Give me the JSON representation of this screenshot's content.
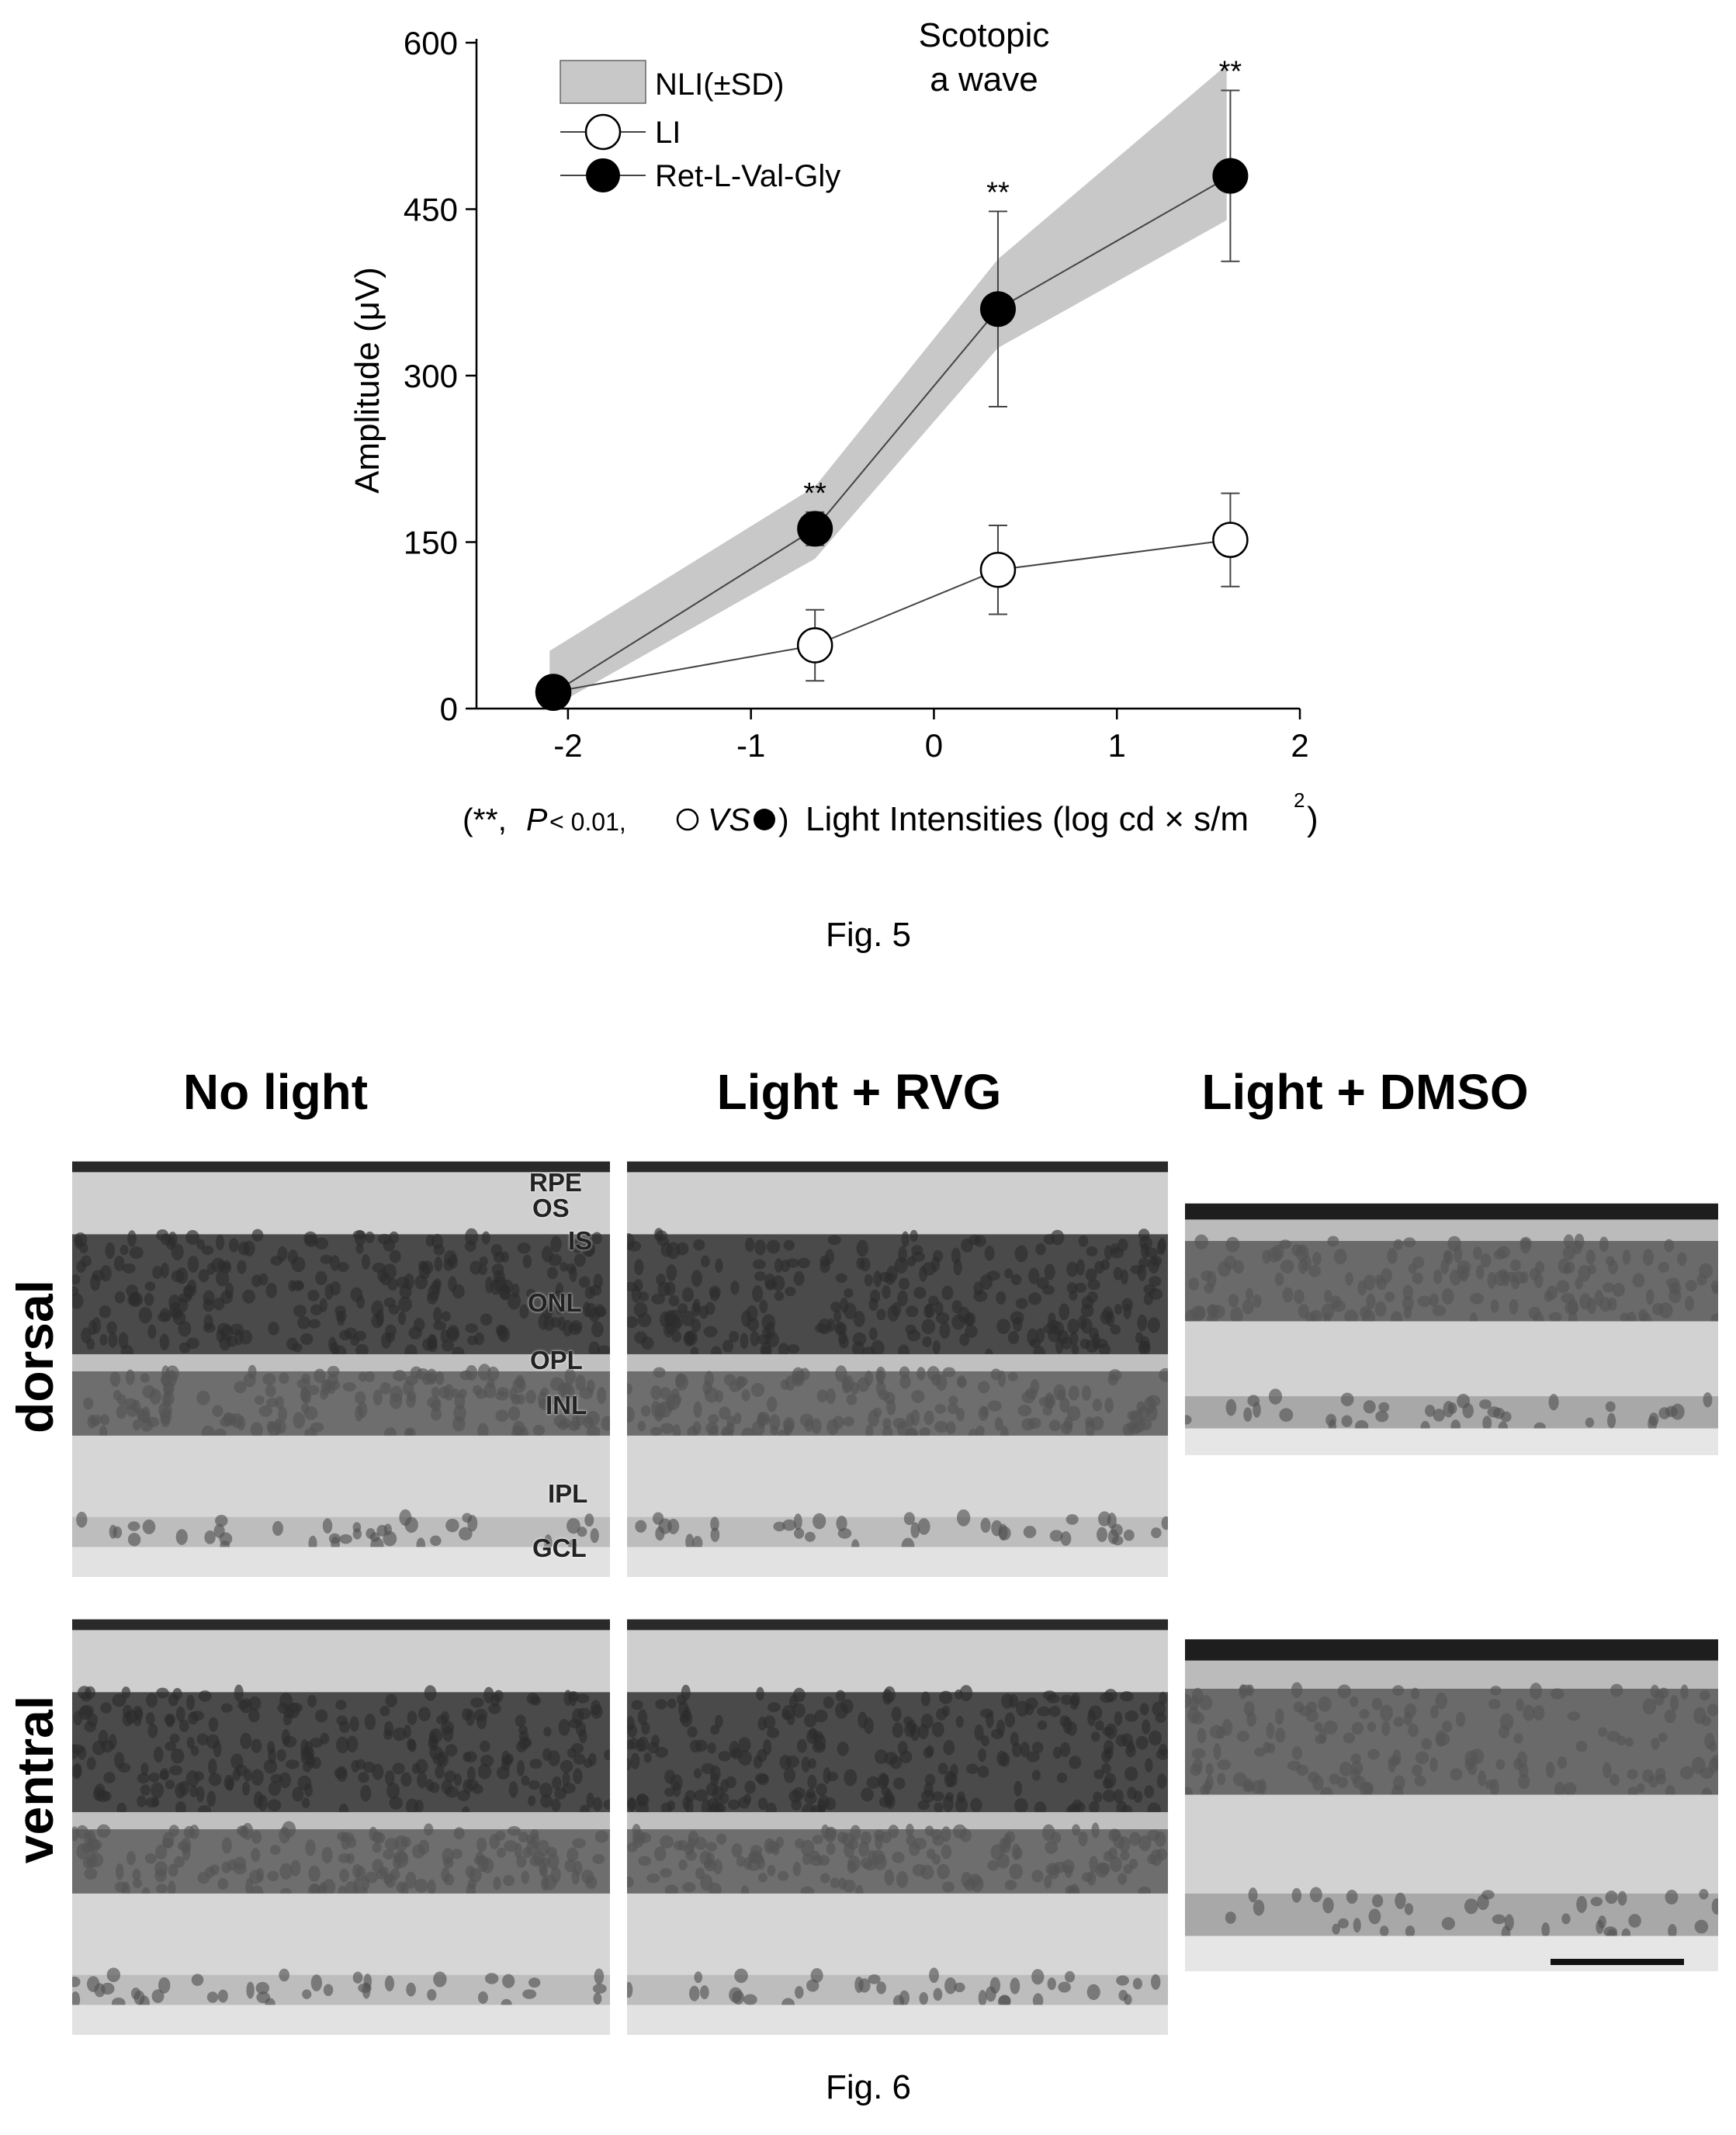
{
  "fig5": {
    "caption": "Fig. 5",
    "annotation": [
      "Scotopic",
      "a wave"
    ],
    "footnote": {
      "open": "(**, ",
      "p_italic": "P",
      "p_rest": "< 0.01, ",
      "vs_italic": "VS",
      "close": ")",
      "axis_label": "Light Intensities (log cd × s/m",
      "axis_sup": "2",
      "axis_end": ")"
    },
    "chart_data": {
      "type": "line",
      "ylabel": "Amplitude (μV)",
      "xlabel": "Light Intensities (log cd × s/m2)",
      "xlim": [
        -2.5,
        2
      ],
      "ylim": [
        0,
        600
      ],
      "x_ticks": [
        -2,
        -1,
        0,
        1,
        2
      ],
      "x_tick_labels": [
        "-2",
        "-1",
        "0",
        "1",
        "2"
      ],
      "y_ticks": [
        0,
        150,
        300,
        450,
        600
      ],
      "y_tick_labels": [
        "0",
        "150",
        "300",
        "450",
        "600"
      ],
      "legend_position": "top-left",
      "significance_marker": "**",
      "band": {
        "name": "NLI(±SD)",
        "x": [
          -2.1,
          -0.65,
          0.35,
          1.6
        ],
        "upper": [
          52,
          200,
          405,
          580
        ],
        "lower": [
          0,
          135,
          325,
          440
        ]
      },
      "series": [
        {
          "name": "LI",
          "marker": "open-circle",
          "x": [
            -2.08,
            -0.65,
            0.35,
            1.62
          ],
          "y": [
            15,
            57,
            125,
            152
          ],
          "error": [
            5,
            32,
            40,
            42
          ]
        },
        {
          "name": "Ret-L-Val-Gly",
          "marker": "filled-circle",
          "x": [
            -2.08,
            -0.65,
            0.35,
            1.62
          ],
          "y": [
            14,
            162,
            360,
            480
          ],
          "error": [
            5,
            15,
            88,
            77
          ],
          "significant": [
            false,
            true,
            true,
            true
          ]
        }
      ]
    }
  },
  "fig6": {
    "caption": "Fig. 6",
    "columns": [
      "No light",
      "Light + RVG",
      "Light + DMSO"
    ],
    "rows": [
      "dorsal",
      "ventral"
    ],
    "layer_labels": [
      "RPE",
      "OS",
      "IS",
      "ONL",
      "OPL",
      "INL",
      "IPL",
      "GCL"
    ]
  },
  "colors": {
    "band_fill": "#c8c8c8",
    "line": "#444444",
    "marker_filled": "#000000",
    "marker_open": "#ffffff",
    "tissue_light": "#d4d4d4",
    "tissue_dark": "#3a3a3a",
    "tissue_mid": "#6a6a6a"
  }
}
